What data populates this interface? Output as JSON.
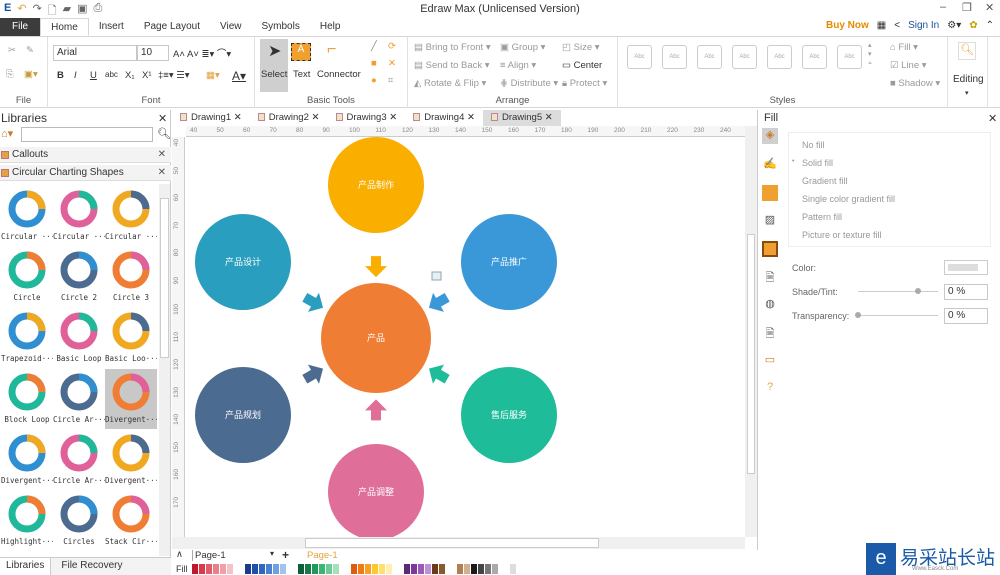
{
  "app": {
    "title": "Edraw Max (Unlicensed Version)",
    "minimize": "–",
    "restore": "❐",
    "close": "✕"
  },
  "menu": {
    "tabs": [
      "File",
      "Home",
      "Insert",
      "Page Layout",
      "View",
      "Symbols",
      "Help"
    ],
    "active": "Home"
  },
  "account": {
    "buy_now": "Buy Now",
    "sign_in": "Sign In"
  },
  "ribbon": {
    "file_group": "File",
    "font": {
      "family": "Arial",
      "size": "10",
      "group": "Font",
      "buttons": [
        "B",
        "I",
        "U",
        "abc",
        "X₁",
        "X¹"
      ]
    },
    "basic_tools": {
      "group": "Basic Tools",
      "select": "Select",
      "text": "Text",
      "connector": "Connector"
    },
    "arrange": {
      "group": "Arrange",
      "bring_to_front": "Bring to Front",
      "send_to_back": "Send to Back",
      "rotate_flip": "Rotate & Flip",
      "group_btn": "Group",
      "align": "Align",
      "distribute": "Distribute",
      "size": "Size",
      "center": "Center",
      "protect": "Protect"
    },
    "styles": {
      "group": "Styles",
      "swatch": "Abc",
      "fill": "Fill",
      "line": "Line",
      "shadow": "Shadow"
    },
    "editing": {
      "label": "Editing"
    }
  },
  "libraries": {
    "title": "Libraries",
    "search_placeholder": "",
    "sections": [
      "Callouts",
      "Circular Charting Shapes"
    ],
    "items": [
      "Circular ···",
      "Circular ···",
      "Circular ···",
      "Circle",
      "Circle 2",
      "Circle 3",
      "Trapezoid···",
      "Basic Loop",
      "Basic Loo···",
      "Block Loop",
      "Circle Ar···",
      "Divergent···",
      "Divergent···",
      "Circle Ar···",
      "Divergent···",
      "Highlight···",
      "Circles",
      "Stack Cir···"
    ],
    "selected_index": 11,
    "bottom_tabs": [
      "Libraries",
      "File Recovery"
    ]
  },
  "documents": {
    "tabs": [
      "Drawing1",
      "Drawing2",
      "Drawing3",
      "Drawing4",
      "Drawing5"
    ],
    "active": "Drawing5"
  },
  "rulers": {
    "horizontal": [
      "40",
      "50",
      "60",
      "70",
      "80",
      "90",
      "100",
      "110",
      "120",
      "130",
      "140",
      "150",
      "160",
      "170",
      "180",
      "190",
      "200",
      "210",
      "220",
      "230",
      "240"
    ],
    "vertical": [
      "40",
      "50",
      "60",
      "70",
      "80",
      "90",
      "100",
      "110",
      "120",
      "130",
      "140",
      "150",
      "160",
      "170"
    ]
  },
  "diagram": {
    "center": {
      "label": "产品",
      "color": "#ef7d33"
    },
    "nodes": [
      {
        "label": "产品制作",
        "color": "#f9ae00"
      },
      {
        "label": "产品推广",
        "color": "#3a98d8"
      },
      {
        "label": "售后服务",
        "color": "#1fbc9a"
      },
      {
        "label": "产品调整",
        "color": "#df6e98"
      },
      {
        "label": "产品规划",
        "color": "#4c6b91"
      },
      {
        "label": "产品设计",
        "color": "#2a9ebe"
      }
    ]
  },
  "pages": {
    "current": "Page-1",
    "tab": "Page-1",
    "add": "+"
  },
  "palette": {
    "label": "Fill",
    "colors": [
      "#c0182a",
      "#d83a4a",
      "#e05c6b",
      "#e87f8a",
      "#efa0a8",
      "#f5c2c7",
      "#1a3a8a",
      "#1f4fa8",
      "#2f66c0",
      "#4a80d0",
      "#70a0e0",
      "#a0c4ee",
      "#0f5e3a",
      "#177a4a",
      "#1f9a5c",
      "#3ab574",
      "#6acc94",
      "#a4e0bc",
      "#e05a10",
      "#f07a18",
      "#f8a020",
      "#fcc830",
      "#fde070",
      "#fff0b0",
      "#5a2a7a",
      "#7a3a9a",
      "#9a5ab8",
      "#c090d4",
      "#6a3a1a",
      "#8a5a2a",
      "#b08050",
      "#d0b090",
      "#1a1a1a",
      "#444444",
      "#777777",
      "#aaaaaa",
      "#dddddd"
    ]
  },
  "fill_panel": {
    "title": "Fill",
    "options": [
      "No fill",
      "Solid fill",
      "Gradient fill",
      "Single color gradient fill",
      "Pattern fill",
      "Picture or texture fill"
    ],
    "selected": "Solid fill",
    "color_label": "Color:",
    "shade_label": "Shade/Tint:",
    "shade_value": "0 %",
    "shade_level": 0.75,
    "transparency_label": "Transparency:",
    "transparency_value": "0 %",
    "transparency_level": 0
  },
  "watermark": {
    "text": "易采站长站",
    "sub": "Www.Easck.Com"
  }
}
